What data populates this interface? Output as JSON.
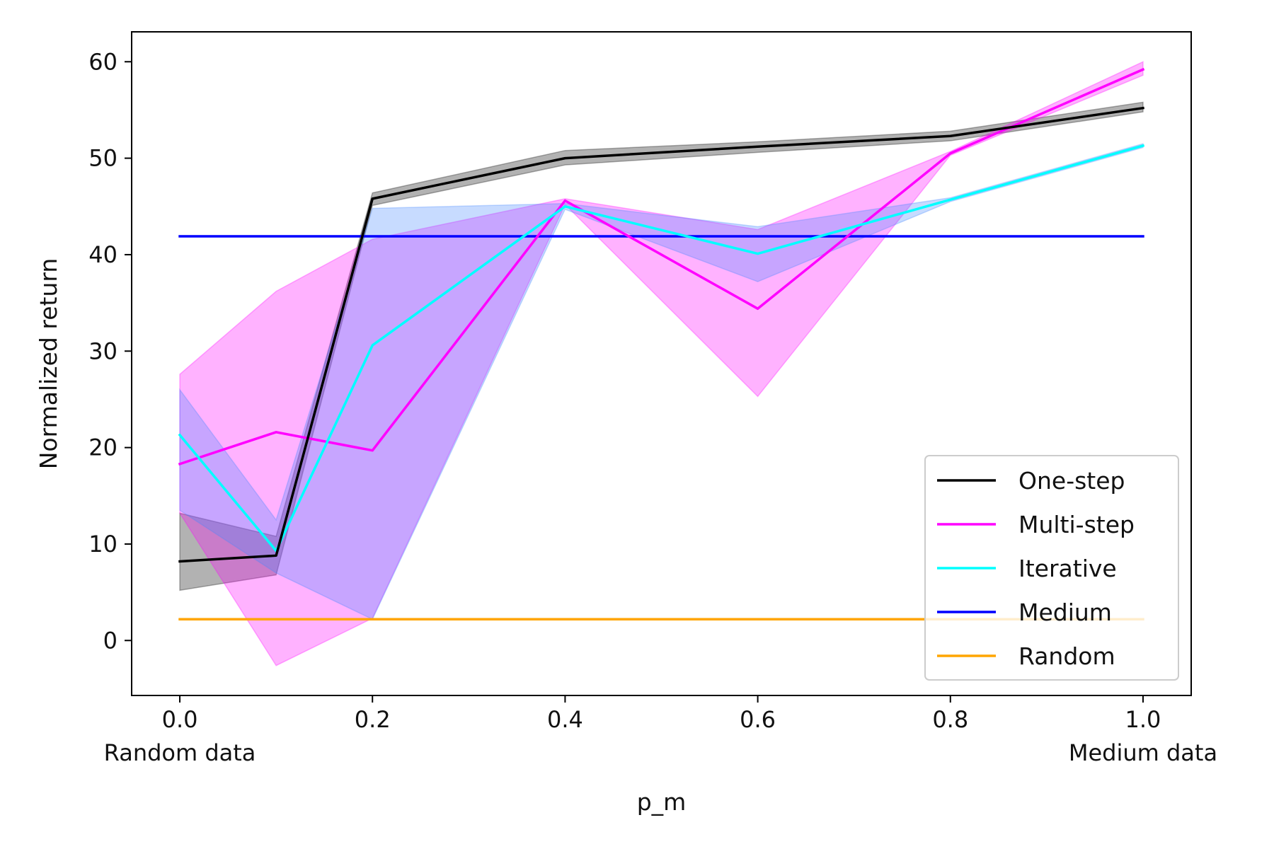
{
  "chart_data": {
    "type": "line",
    "title": "",
    "xlabel": "p_m",
    "ylabel": "Normalized return",
    "xlim": [
      -0.05,
      1.05
    ],
    "ylim": [
      -5.7,
      63.1
    ],
    "x_ticks": [
      0.0,
      0.2,
      0.4,
      0.6,
      0.8,
      1.0
    ],
    "x_tick_labels": [
      "0.0",
      "0.2",
      "0.4",
      "0.6",
      "0.8",
      "1.0"
    ],
    "x_tick_sublabels": [
      {
        "x": 0.0,
        "text": "Random data"
      },
      {
        "x": 1.0,
        "text": "Medium data"
      }
    ],
    "y_ticks": [
      0,
      10,
      20,
      30,
      40,
      50,
      60
    ],
    "y_tick_labels": [
      "0",
      "10",
      "20",
      "30",
      "40",
      "50",
      "60"
    ],
    "grid": false,
    "legend_position": "bottom-right",
    "series": [
      {
        "name": "One-step",
        "color": "#000000",
        "band_color": "#000000",
        "x": [
          0.0,
          0.1,
          0.2,
          0.4,
          0.6,
          0.8,
          1.0
        ],
        "values": [
          8.2,
          8.8,
          45.8,
          50.0,
          51.2,
          52.3,
          55.2
        ],
        "lower": [
          5.2,
          6.8,
          45.1,
          49.3,
          50.6,
          51.8,
          54.8
        ],
        "upper": [
          13.2,
          10.8,
          46.4,
          50.8,
          51.7,
          52.8,
          55.8
        ]
      },
      {
        "name": "Multi-step",
        "color": "#ff00ff",
        "band_color": "#ff00ff",
        "x": [
          0.0,
          0.1,
          0.2,
          0.4,
          0.6,
          0.8,
          1.0
        ],
        "values": [
          18.3,
          21.6,
          19.7,
          45.6,
          34.4,
          50.5,
          59.2
        ],
        "lower": [
          13.2,
          -2.6,
          2.3,
          45.2,
          25.3,
          50.3,
          58.6
        ],
        "upper": [
          27.6,
          36.2,
          41.6,
          45.8,
          42.6,
          50.7,
          60.0
        ]
      },
      {
        "name": "Iterative",
        "color": "#00ffff",
        "band_color": "#4488ff",
        "x": [
          0.0,
          0.1,
          0.2,
          0.4,
          0.6,
          0.8,
          1.0
        ],
        "values": [
          21.3,
          9.3,
          30.6,
          45.0,
          40.1,
          45.7,
          51.3
        ],
        "lower": [
          13.5,
          7.0,
          2.2,
          44.7,
          37.2,
          45.5,
          51.1
        ],
        "upper": [
          26.0,
          12.5,
          44.8,
          45.3,
          42.9,
          45.9,
          51.5
        ]
      },
      {
        "name": "Medium",
        "color": "#0000ff",
        "x": [
          0.0,
          1.0
        ],
        "values": [
          41.9,
          41.9
        ]
      },
      {
        "name": "Random",
        "color": "#ffa500",
        "x": [
          0.0,
          1.0
        ],
        "values": [
          2.2,
          2.2
        ]
      }
    ]
  }
}
